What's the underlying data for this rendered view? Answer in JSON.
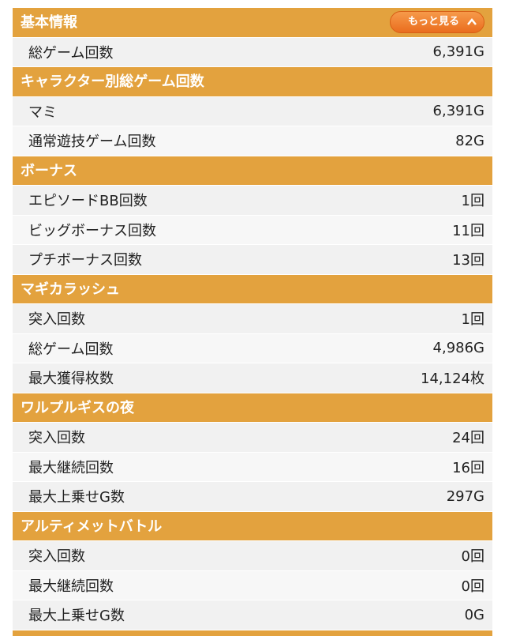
{
  "more_button": "もっと見る",
  "sections": [
    {
      "title": "基本情報",
      "rows": [
        [
          "総ゲーム回数",
          "6,391G"
        ]
      ]
    },
    {
      "title": "キャラクター別総ゲーム回数",
      "rows": [
        [
          "マミ",
          "6,391G"
        ],
        [
          "通常遊技ゲーム回数",
          "82G"
        ]
      ]
    },
    {
      "title": "ボーナス",
      "rows": [
        [
          "エピソードBB回数",
          "1回"
        ],
        [
          "ビッグボーナス回数",
          "11回"
        ],
        [
          "プチボーナス回数",
          "13回"
        ]
      ]
    },
    {
      "title": "マギカラッシュ",
      "rows": [
        [
          "突入回数",
          "1回"
        ],
        [
          "総ゲーム回数",
          "4,986G"
        ],
        [
          "最大獲得枚数",
          "14,124枚"
        ]
      ]
    },
    {
      "title": "ワルプルギスの夜",
      "rows": [
        [
          "突入回数",
          "24回"
        ],
        [
          "最大継続回数",
          "16回"
        ],
        [
          "最大上乗せG数",
          "297G"
        ]
      ]
    },
    {
      "title": "アルティメットバトル",
      "rows": [
        [
          "突入回数",
          "0回"
        ],
        [
          "最大継続回数",
          "0回"
        ],
        [
          "最大上乗せG数",
          "0G"
        ]
      ]
    }
  ]
}
